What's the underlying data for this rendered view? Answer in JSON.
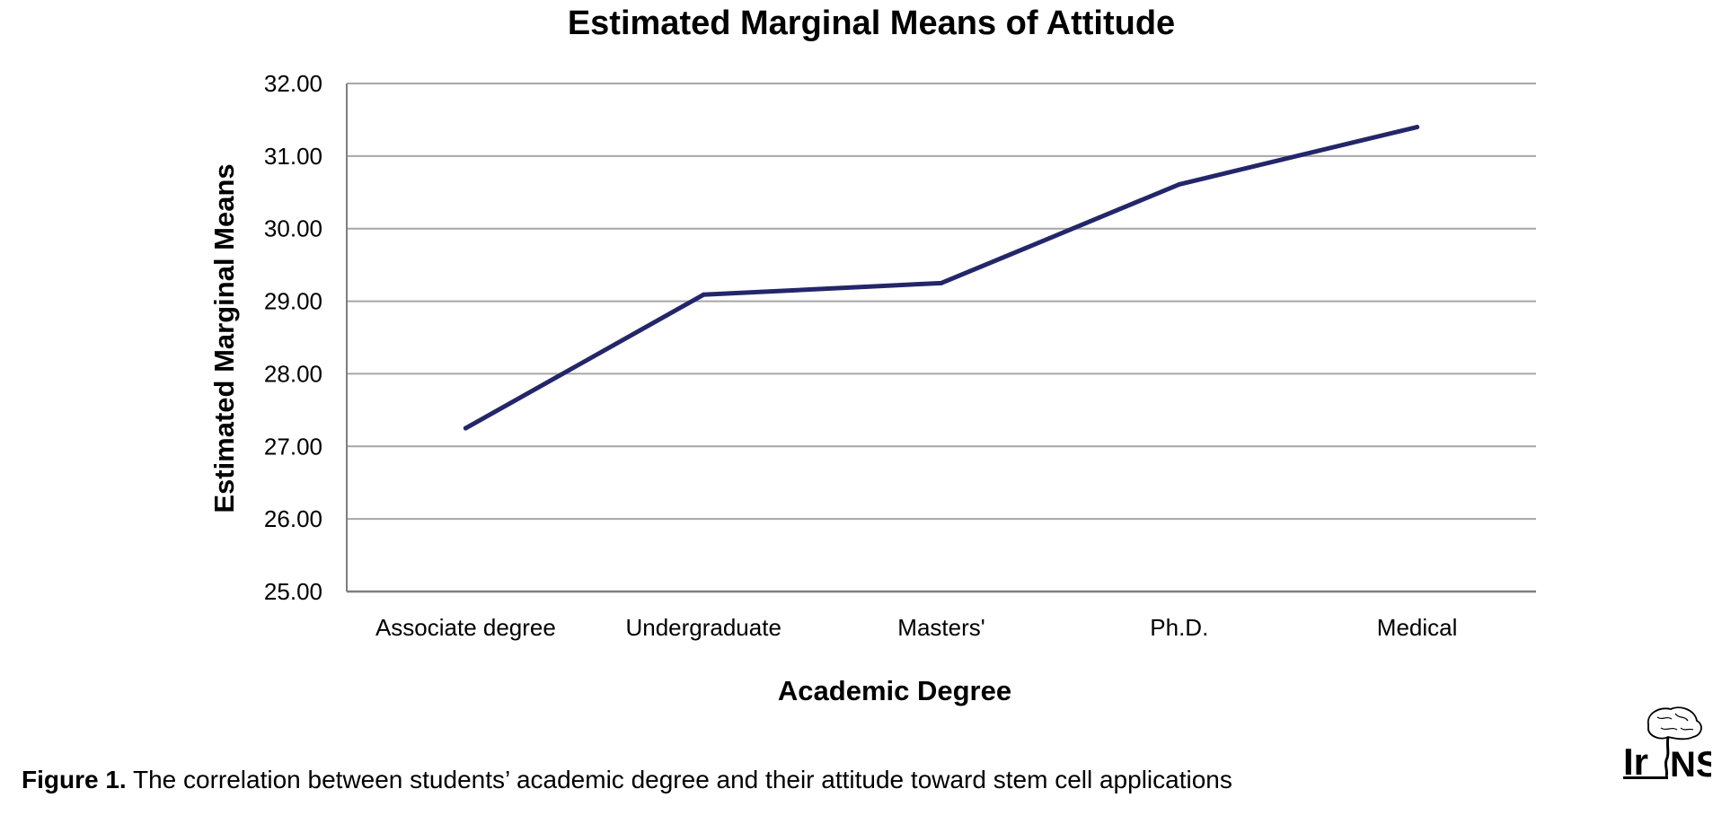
{
  "chart_data": {
    "type": "line",
    "title": "Estimated Marginal Means of Attitude",
    "xlabel": "Academic Degree",
    "ylabel": "Estimated Marginal Means",
    "categories": [
      "Associate degree",
      "Undergraduate",
      "Masters'",
      "Ph.D.",
      "Medical"
    ],
    "series": [
      {
        "values": [
          27.25,
          29.09,
          29.25,
          30.61,
          31.4
        ]
      }
    ],
    "ylim": [
      25.0,
      32.0
    ],
    "yticks": [
      "25.00",
      "26.00",
      "27.00",
      "28.00",
      "29.00",
      "30.00",
      "31.00",
      "32.00"
    ],
    "grid": true,
    "legend": "none",
    "line_color": "#24266A",
    "grid_color": "#a6a6a6"
  },
  "caption": {
    "label": "Figure 1.",
    "text": " The correlation between students’ academic degree and their attitude toward stem cell applications"
  },
  "logo": {
    "text": "IrNS",
    "icon": "brain-logo-icon"
  }
}
